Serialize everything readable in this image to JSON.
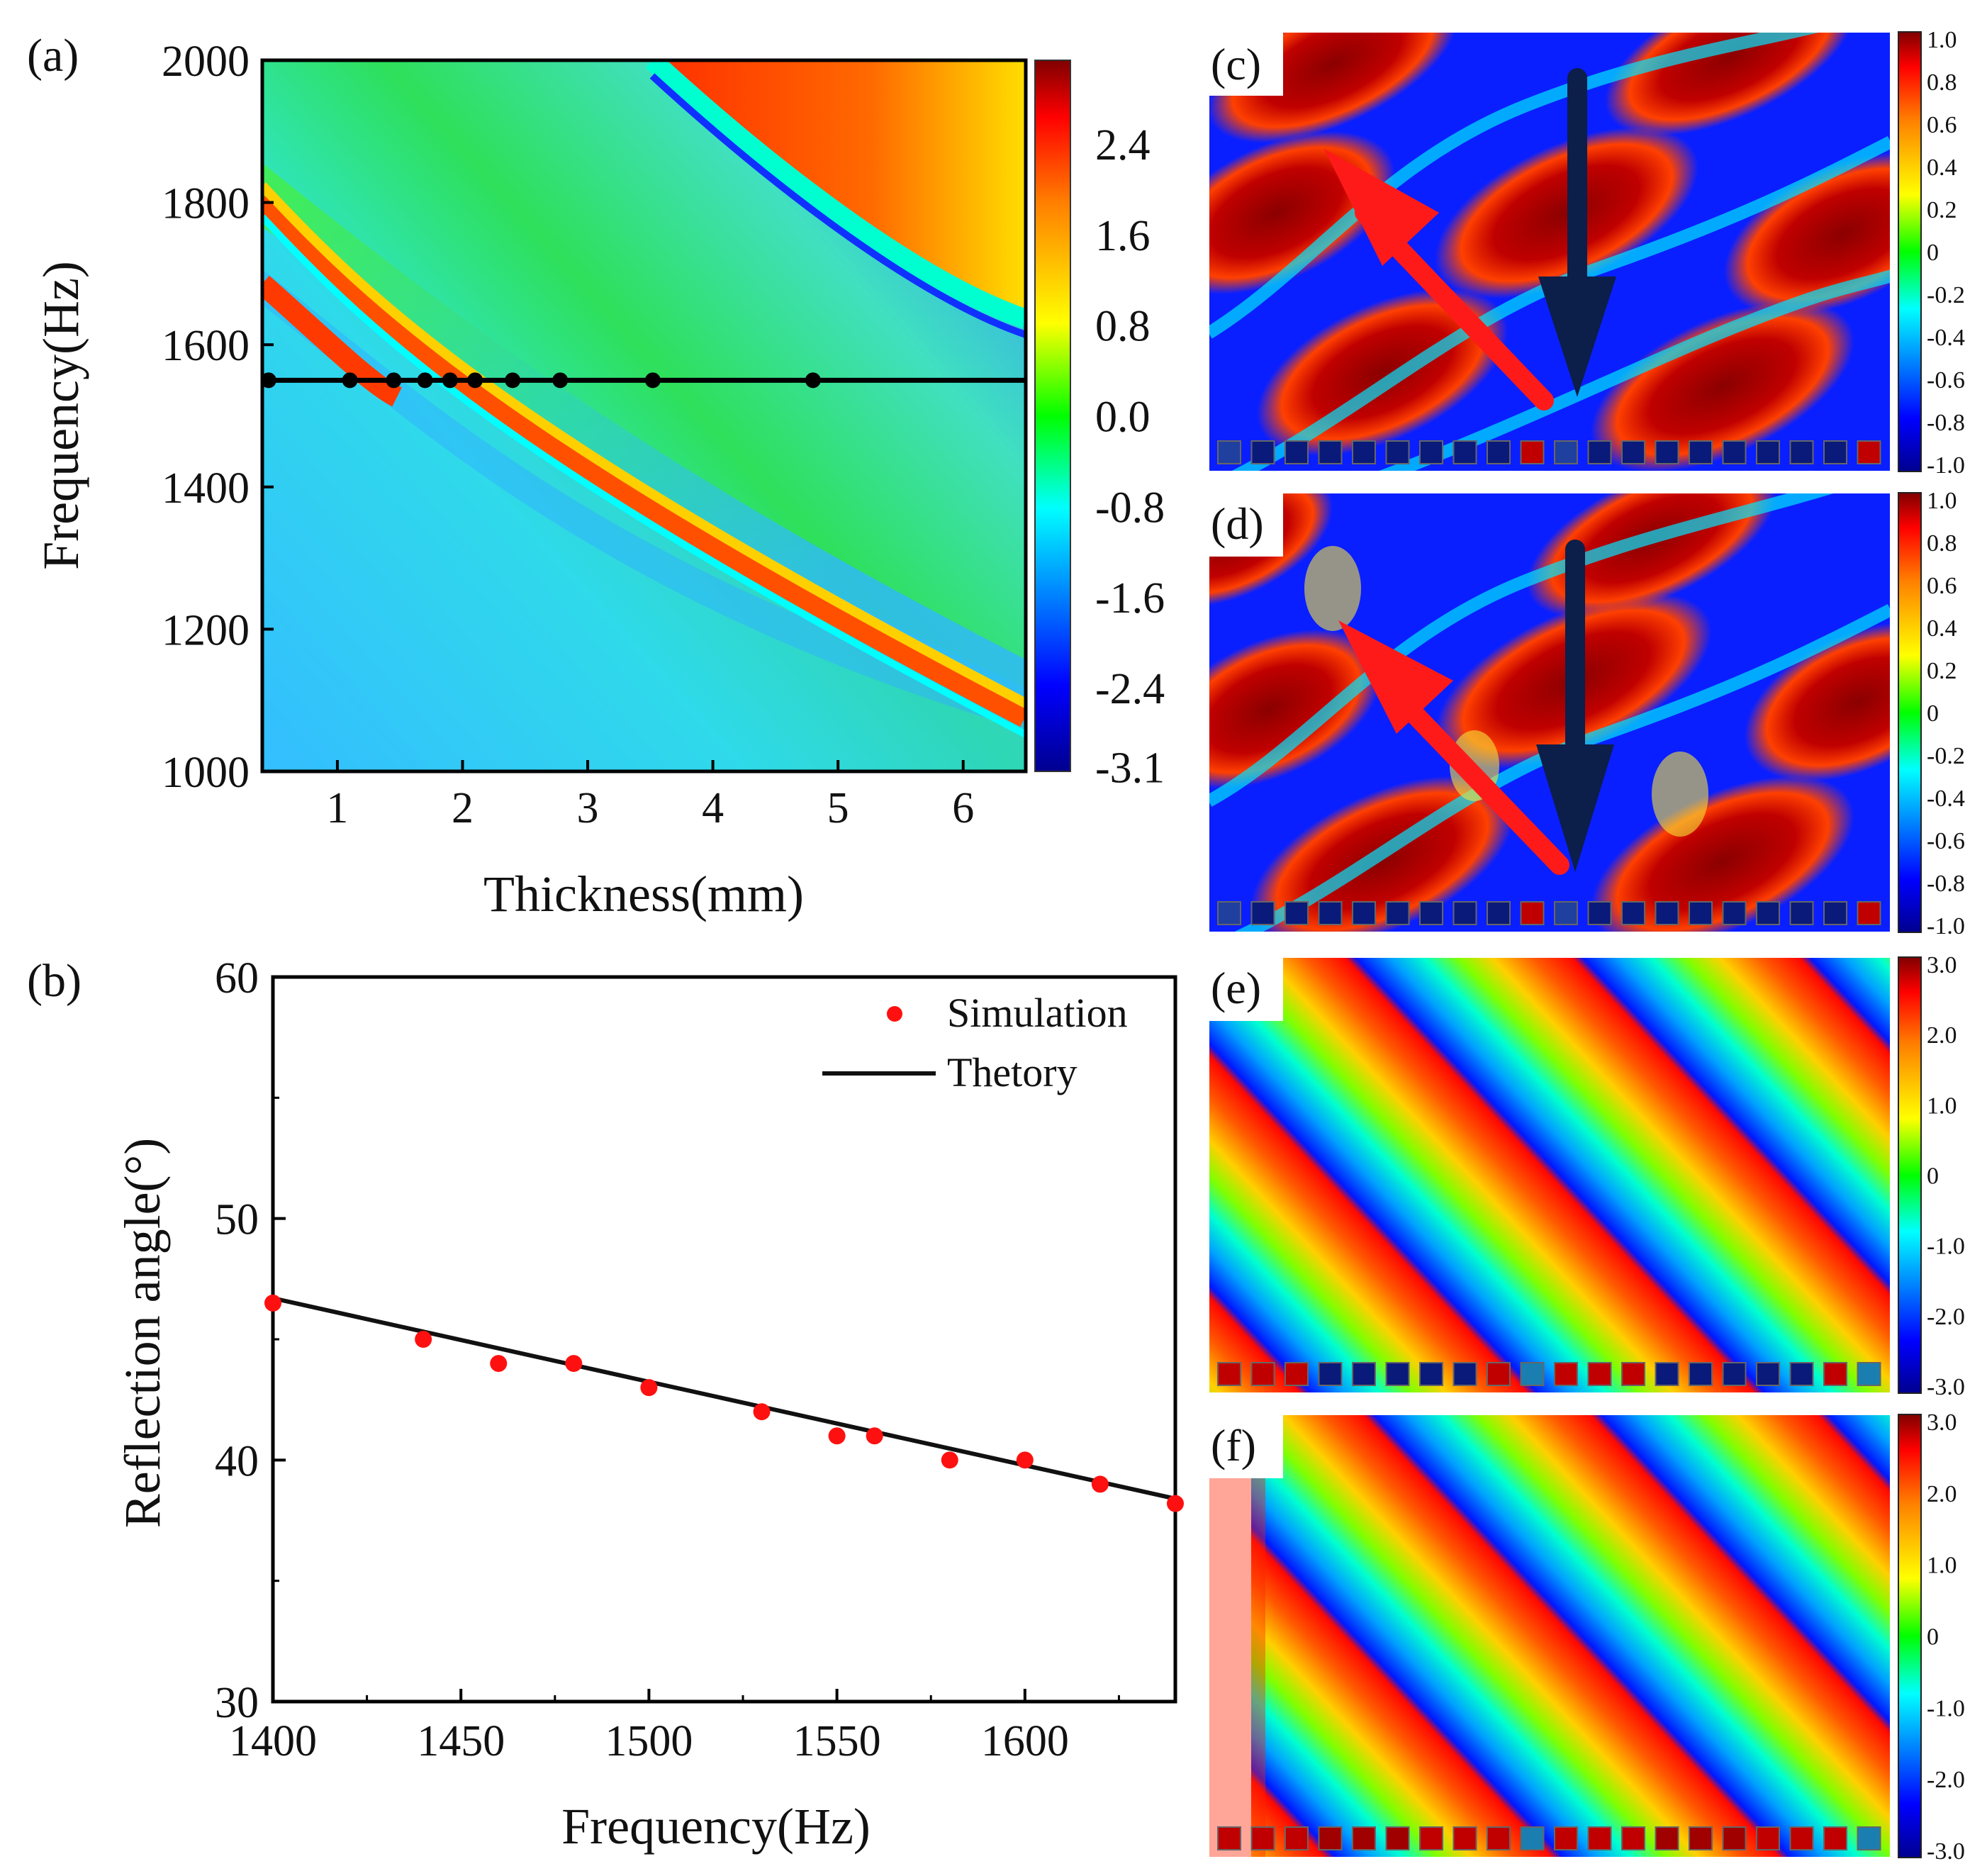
{
  "panel_labels": {
    "a": "(a)",
    "b": "(b)",
    "c": "(c)",
    "d": "(d)",
    "e": "(e)",
    "f": "(f)"
  },
  "colors": {
    "jet": [
      "#00008f",
      "#0000ff",
      "#00ffff",
      "#00ff00",
      "#ffff00",
      "#ff7f00",
      "#ff0000",
      "#800000"
    ],
    "arrow_red": "#ff1a1a",
    "arrow_navy": "#0c1e4a",
    "marker": "#ff1010"
  },
  "chart_data": [
    {
      "id": "a",
      "type": "heatmap",
      "xlabel": "Thickness(mm)",
      "ylabel": "Frequency(Hz)",
      "xlim": [
        0.4,
        6.5
      ],
      "ylim": [
        1000,
        2000
      ],
      "xticks": [
        "1",
        "2",
        "3",
        "4",
        "5",
        "6"
      ],
      "yticks": [
        "1000",
        "1200",
        "1400",
        "1600",
        "1800",
        "2000"
      ],
      "colorbar_ticks": [
        "2.4",
        "1.6",
        "0.8",
        "0.0",
        "-0.8",
        "-1.6",
        "-2.4",
        "-3.1"
      ],
      "colorbar_range": [
        -3.14,
        3.14
      ],
      "line_y": 1550,
      "points_x": [
        0.45,
        1.1,
        1.45,
        1.7,
        1.9,
        2.1,
        2.4,
        2.78,
        3.52,
        4.8
      ]
    },
    {
      "id": "b",
      "type": "scatter",
      "xlabel": "Frequency(Hz)",
      "ylabel": "Reflection angle(°)",
      "xlim": [
        1400,
        1640
      ],
      "ylim": [
        30,
        60
      ],
      "xticks": [
        "1400",
        "1450",
        "1500",
        "1550",
        "1600"
      ],
      "yticks": [
        "30",
        "40",
        "50",
        "60"
      ],
      "legend": [
        "Simulation",
        "Thetory"
      ],
      "legend_position": "top-right",
      "series": [
        {
          "name": "Simulation",
          "x": [
            1400,
            1440,
            1460,
            1480,
            1500,
            1530,
            1550,
            1560,
            1580,
            1600,
            1620,
            1640
          ],
          "y": [
            46.5,
            45,
            44,
            44,
            43,
            42,
            41,
            41,
            40,
            40,
            39,
            38.2
          ]
        },
        {
          "name": "Thetory",
          "x": [
            1400,
            1640
          ],
          "y": [
            46.7,
            38.4
          ]
        }
      ]
    },
    {
      "id": "c",
      "type": "heatmap",
      "colorbar_ticks": [
        "1.0",
        "0.8",
        "0.6",
        "0.4",
        "0.2",
        "0",
        "-0.2",
        "-0.4",
        "-0.6",
        "-0.8",
        "-1.0"
      ]
    },
    {
      "id": "d",
      "type": "heatmap",
      "colorbar_ticks": [
        "1.0",
        "0.8",
        "0.6",
        "0.4",
        "0.2",
        "0",
        "-0.2",
        "-0.4",
        "-0.6",
        "-0.8",
        "-1.0"
      ]
    },
    {
      "id": "e",
      "type": "heatmap",
      "colorbar_ticks": [
        "3.0",
        "2.0",
        "1.0",
        "0",
        "-1.0",
        "-2.0",
        "-3.0"
      ]
    },
    {
      "id": "f",
      "type": "heatmap",
      "colorbar_ticks": [
        "3.0",
        "2.0",
        "1.0",
        "0",
        "-1.0",
        "-2.0",
        "-3.0"
      ]
    }
  ]
}
